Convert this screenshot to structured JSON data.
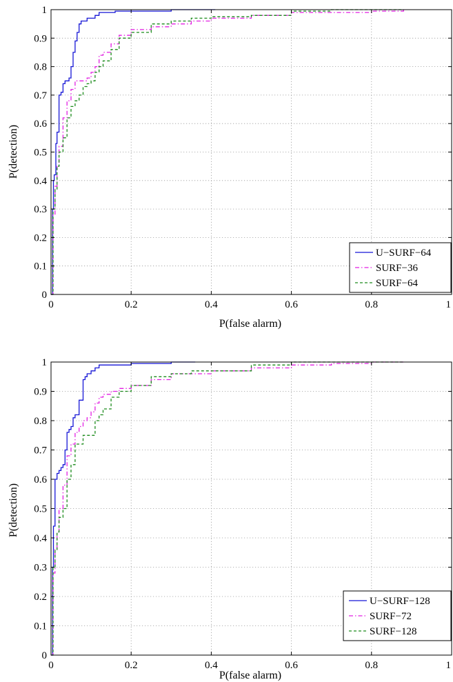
{
  "chart_data": [
    {
      "type": "line",
      "title": "",
      "xlabel": "P(false alarm)",
      "ylabel": "P(detection)",
      "xlim": [
        0,
        1
      ],
      "ylim": [
        0,
        1
      ],
      "xticks": [
        "0",
        "0.2",
        "0.4",
        "0.6",
        "0.8",
        "1"
      ],
      "yticks": [
        "0",
        "0.1",
        "0.2",
        "0.3",
        "0.4",
        "0.5",
        "0.6",
        "0.7",
        "0.8",
        "0.9",
        "1"
      ],
      "grid": true,
      "legend_position": "bottom-right",
      "series": [
        {
          "name": "U−SURF−64",
          "color": "#1515d6",
          "style": "solid",
          "x": [
            0,
            0.004,
            0.006,
            0.008,
            0.012,
            0.015,
            0.02,
            0.025,
            0.03,
            0.035,
            0.04,
            0.045,
            0.05,
            0.055,
            0.06,
            0.065,
            0.07,
            0.075,
            0.08,
            0.09,
            0.1,
            0.11,
            0.12,
            0.13,
            0.14,
            0.16,
            0.2,
            0.3,
            0.41
          ],
          "y": [
            0,
            0.3,
            0.4,
            0.42,
            0.53,
            0.57,
            0.7,
            0.71,
            0.74,
            0.75,
            0.75,
            0.76,
            0.8,
            0.85,
            0.89,
            0.92,
            0.95,
            0.96,
            0.96,
            0.97,
            0.97,
            0.98,
            0.99,
            0.99,
            0.99,
            0.995,
            0.995,
            1.0,
            1.0
          ]
        },
        {
          "name": "SURF−36",
          "color": "#e21ee2",
          "style": "dashdot",
          "x": [
            0,
            0.005,
            0.01,
            0.015,
            0.02,
            0.03,
            0.04,
            0.05,
            0.06,
            0.07,
            0.08,
            0.09,
            0.1,
            0.11,
            0.12,
            0.13,
            0.15,
            0.17,
            0.2,
            0.25,
            0.3,
            0.35,
            0.4,
            0.5,
            0.6,
            0.7,
            0.8,
            0.88
          ],
          "y": [
            0,
            0.28,
            0.38,
            0.45,
            0.52,
            0.62,
            0.68,
            0.72,
            0.75,
            0.75,
            0.75,
            0.76,
            0.78,
            0.8,
            0.84,
            0.85,
            0.88,
            0.91,
            0.93,
            0.94,
            0.95,
            0.96,
            0.97,
            0.98,
            0.99,
            0.99,
            0.995,
            1.0
          ]
        },
        {
          "name": "SURF−64",
          "color": "#1a8a1a",
          "style": "dashed",
          "x": [
            0,
            0.005,
            0.01,
            0.015,
            0.02,
            0.03,
            0.04,
            0.05,
            0.06,
            0.07,
            0.08,
            0.09,
            0.1,
            0.11,
            0.12,
            0.13,
            0.15,
            0.17,
            0.2,
            0.25,
            0.3,
            0.35,
            0.4,
            0.5,
            0.6,
            0.7,
            0.8,
            0.88
          ],
          "y": [
            0,
            0.3,
            0.37,
            0.45,
            0.5,
            0.55,
            0.62,
            0.66,
            0.68,
            0.7,
            0.73,
            0.74,
            0.75,
            0.78,
            0.8,
            0.82,
            0.86,
            0.9,
            0.92,
            0.95,
            0.96,
            0.97,
            0.975,
            0.98,
            0.995,
            1.0,
            1.0,
            1.0
          ]
        }
      ]
    },
    {
      "type": "line",
      "title": "",
      "xlabel": "P(false alarm)",
      "ylabel": "P(detection)",
      "xlim": [
        0,
        1
      ],
      "ylim": [
        0,
        1
      ],
      "xticks": [
        "0",
        "0.2",
        "0.4",
        "0.6",
        "0.8",
        "1"
      ],
      "yticks": [
        "0",
        "0.1",
        "0.2",
        "0.3",
        "0.4",
        "0.5",
        "0.6",
        "0.7",
        "0.8",
        "0.9",
        "1"
      ],
      "grid": true,
      "legend_position": "bottom-right",
      "series": [
        {
          "name": "U−SURF−128",
          "color": "#1515d6",
          "style": "solid",
          "x": [
            0,
            0.004,
            0.006,
            0.01,
            0.015,
            0.02,
            0.025,
            0.03,
            0.035,
            0.04,
            0.045,
            0.05,
            0.055,
            0.06,
            0.065,
            0.07,
            0.075,
            0.08,
            0.085,
            0.09,
            0.1,
            0.11,
            0.12,
            0.13,
            0.15,
            0.2,
            0.3,
            0.36
          ],
          "y": [
            0,
            0.3,
            0.44,
            0.6,
            0.62,
            0.63,
            0.64,
            0.65,
            0.7,
            0.76,
            0.77,
            0.78,
            0.81,
            0.82,
            0.82,
            0.87,
            0.87,
            0.94,
            0.95,
            0.96,
            0.97,
            0.98,
            0.99,
            0.99,
            0.99,
            0.995,
            1.0,
            1.0
          ]
        },
        {
          "name": "SURF−72",
          "color": "#e21ee2",
          "style": "dashdot",
          "x": [
            0,
            0.005,
            0.01,
            0.015,
            0.02,
            0.03,
            0.04,
            0.05,
            0.06,
            0.07,
            0.08,
            0.09,
            0.1,
            0.11,
            0.12,
            0.13,
            0.15,
            0.17,
            0.2,
            0.25,
            0.3,
            0.35,
            0.4,
            0.5,
            0.6,
            0.7,
            0.8,
            0.88
          ],
          "y": [
            0,
            0.28,
            0.36,
            0.42,
            0.5,
            0.58,
            0.68,
            0.72,
            0.76,
            0.78,
            0.8,
            0.81,
            0.83,
            0.86,
            0.88,
            0.89,
            0.9,
            0.91,
            0.92,
            0.94,
            0.96,
            0.96,
            0.97,
            0.98,
            0.99,
            0.995,
            1.0,
            1.0
          ]
        },
        {
          "name": "SURF−128",
          "color": "#1a8a1a",
          "style": "dashed",
          "x": [
            0,
            0.005,
            0.01,
            0.015,
            0.02,
            0.03,
            0.04,
            0.05,
            0.06,
            0.07,
            0.08,
            0.09,
            0.1,
            0.11,
            0.12,
            0.13,
            0.15,
            0.17,
            0.2,
            0.25,
            0.3,
            0.35,
            0.4,
            0.5,
            0.6,
            0.7,
            0.8,
            0.88
          ],
          "y": [
            0,
            0.3,
            0.36,
            0.42,
            0.47,
            0.5,
            0.6,
            0.65,
            0.72,
            0.72,
            0.75,
            0.75,
            0.75,
            0.8,
            0.82,
            0.84,
            0.88,
            0.9,
            0.92,
            0.95,
            0.96,
            0.97,
            0.97,
            0.99,
            1.0,
            1.0,
            1.0,
            1.0
          ]
        }
      ]
    }
  ]
}
